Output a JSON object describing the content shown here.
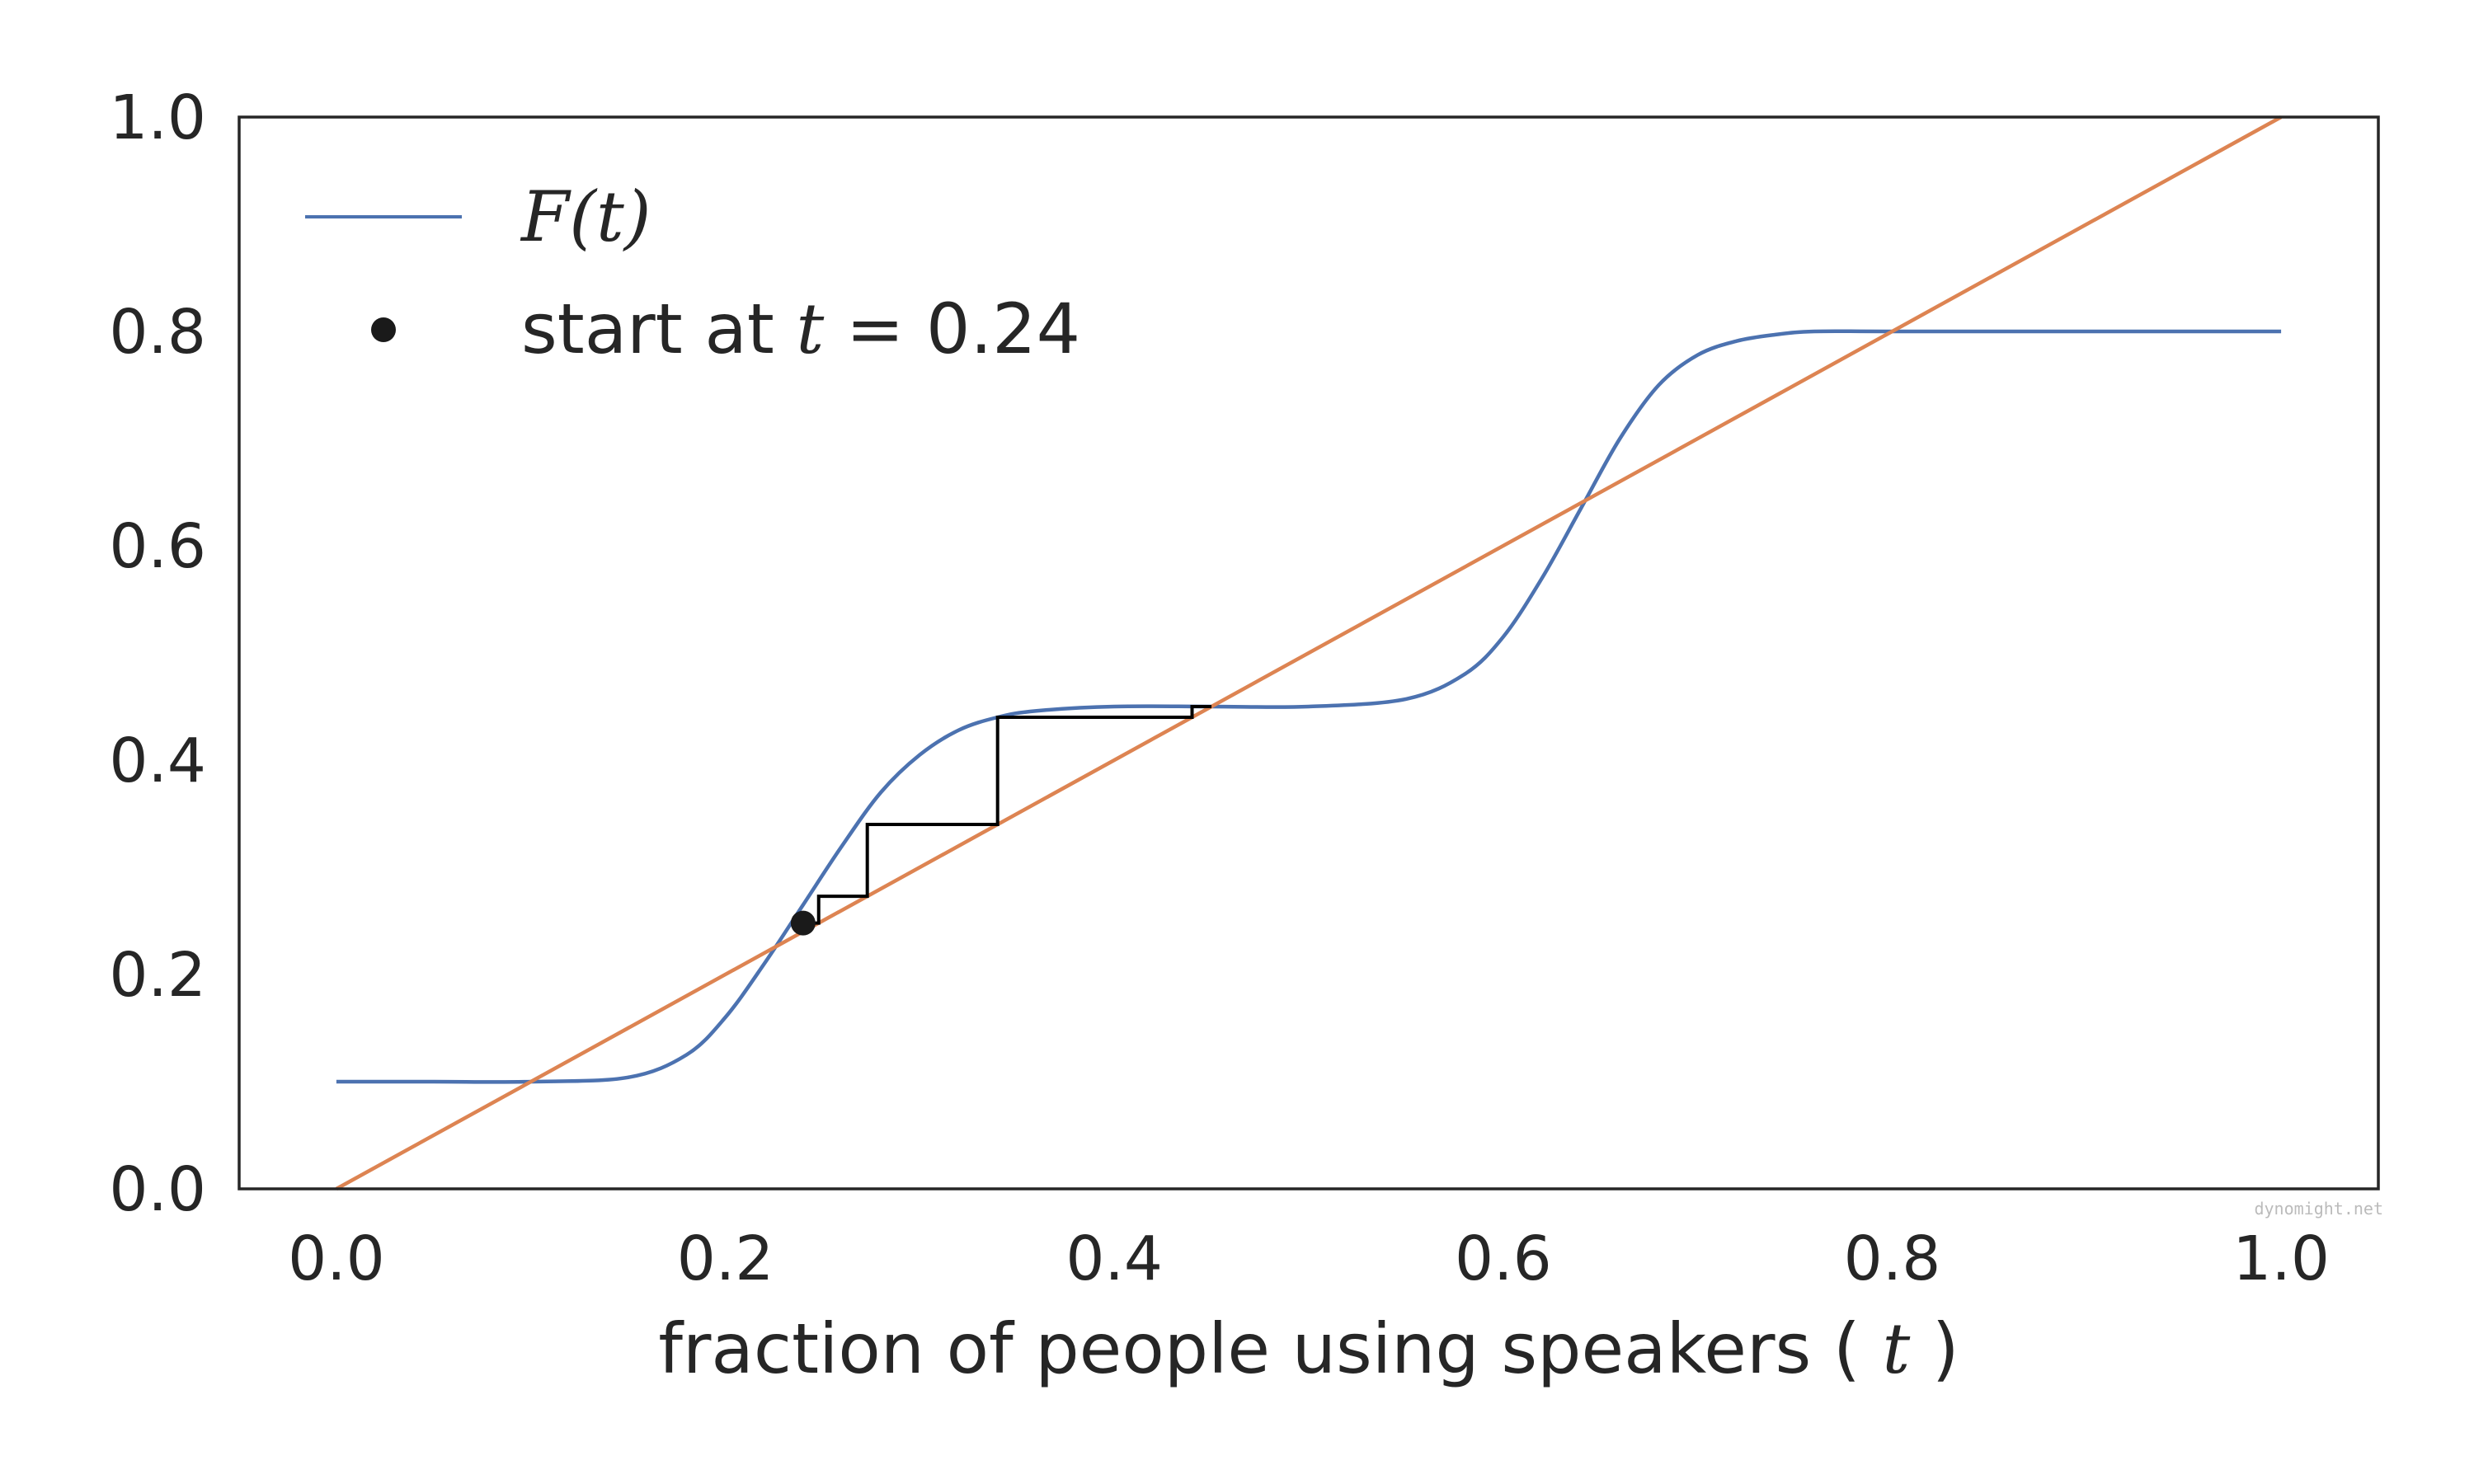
{
  "chart_data": {
    "type": "line",
    "xlabel": {
      "prefix": "fraction of people using speakers (",
      "var": "t",
      "suffix": ")"
    },
    "ylabel": "",
    "xlim": [
      -0.05,
      1.05
    ],
    "ylim": [
      0.0,
      1.0
    ],
    "x_ticks": [
      "0.0",
      "0.2",
      "0.4",
      "0.6",
      "0.8",
      "1.0"
    ],
    "y_ticks": [
      "0.0",
      "0.2",
      "0.4",
      "0.6",
      "0.8",
      "1.0"
    ],
    "grid": false,
    "legend_position": "top-left",
    "series": [
      {
        "name": "F(t)",
        "kind": "line",
        "color": "#4c72b0",
        "x": [
          0.0,
          0.05,
          0.1,
          0.15,
          0.18,
          0.2,
          0.22,
          0.24,
          0.26,
          0.28,
          0.3,
          0.32,
          0.34,
          0.36,
          0.4,
          0.45,
          0.5,
          0.55,
          0.58,
          0.6,
          0.62,
          0.64,
          0.66,
          0.68,
          0.7,
          0.72,
          0.74,
          0.76,
          0.8,
          0.9,
          1.0
        ],
        "y": [
          0.1,
          0.1,
          0.1,
          0.104,
          0.125,
          0.16,
          0.21,
          0.265,
          0.32,
          0.37,
          0.405,
          0.428,
          0.44,
          0.446,
          0.45,
          0.45,
          0.45,
          0.457,
          0.48,
          0.515,
          0.57,
          0.635,
          0.7,
          0.75,
          0.778,
          0.791,
          0.797,
          0.8,
          0.8,
          0.8,
          0.8
        ]
      },
      {
        "name": "",
        "kind": "line",
        "color": "#dd8452",
        "x": [
          0.0,
          1.0
        ],
        "y": [
          0.0,
          1.0
        ]
      },
      {
        "name": "",
        "kind": "step",
        "color": "#000000",
        "x": [
          0.24,
          0.248,
          0.248,
          0.273,
          0.273,
          0.34,
          0.34,
          0.44,
          0.44,
          0.45
        ],
        "y": [
          0.248,
          0.248,
          0.273,
          0.273,
          0.34,
          0.34,
          0.44,
          0.44,
          0.45,
          0.45
        ]
      },
      {
        "name": {
          "prefix": "start at ",
          "var": "t",
          "suffix": " = 0.24"
        },
        "kind": "scatter",
        "color": "#1a1a1a",
        "x": [
          0.24
        ],
        "y": [
          0.248
        ]
      }
    ],
    "annotations": [
      "dynomight.net"
    ]
  }
}
